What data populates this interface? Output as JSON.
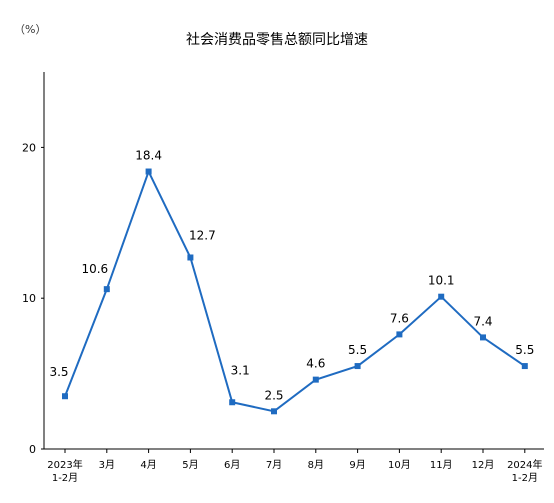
{
  "chart_data": {
    "type": "line",
    "title": "社会消费品零售总额同比增速",
    "ylabel": "（%）",
    "ylim": [
      0,
      25
    ],
    "yticks": [
      "0",
      "10",
      "20"
    ],
    "categories": [
      [
        "2023年",
        "1-2月"
      ],
      [
        "3月"
      ],
      [
        "4月"
      ],
      [
        "5月"
      ],
      [
        "6月"
      ],
      [
        "7月"
      ],
      [
        "8月"
      ],
      [
        "9月"
      ],
      [
        "10月"
      ],
      [
        "11月"
      ],
      [
        "12月"
      ],
      [
        "2024年",
        "1-2月"
      ]
    ],
    "values": [
      3.5,
      10.6,
      18.4,
      12.7,
      3.1,
      2.5,
      4.6,
      5.5,
      7.6,
      10.1,
      7.4,
      5.5
    ],
    "labels": [
      "3.5",
      "10.6",
      "18.4",
      "12.7",
      "3.1",
      "2.5",
      "4.6",
      "5.5",
      "7.6",
      "10.1",
      "7.4",
      "5.5"
    ],
    "grid": false,
    "legend": "none",
    "line_color": "#1F6BC1"
  }
}
